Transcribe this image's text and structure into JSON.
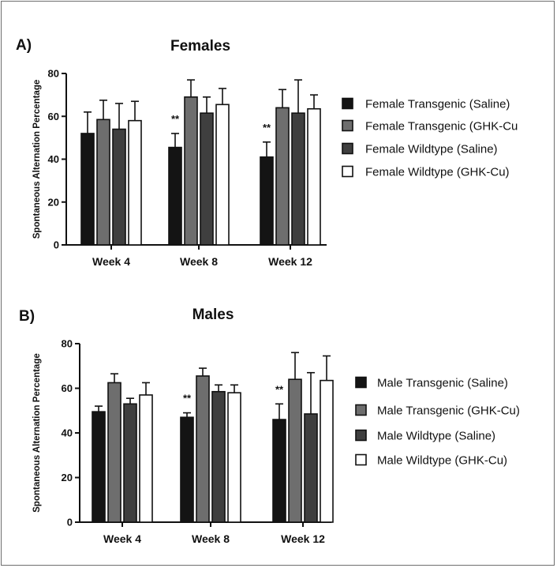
{
  "chart_data": [
    {
      "type": "bar",
      "panel_label": "A)",
      "title": "Females",
      "xlabel": "",
      "ylabel": "Spontaneous Alternation Percentage",
      "ylim": [
        0,
        80
      ],
      "yticks": [
        "0",
        "20",
        "40",
        "60",
        "80"
      ],
      "categories": [
        "Week 4",
        "Week 8",
        "Week 12"
      ],
      "legend_position": "right",
      "series": [
        {
          "name": "Female Transgenic (Saline)",
          "values": [
            52,
            45.5,
            41
          ],
          "errors": [
            10,
            6.5,
            7
          ],
          "color": "#141414"
        },
        {
          "name": "Female Transgenic (GHK-Cu",
          "values": [
            58.5,
            69,
            64
          ],
          "errors": [
            9,
            8,
            8.5
          ],
          "color": "#6e6e6e"
        },
        {
          "name": "Female Wildtype (Saline)",
          "values": [
            54,
            61.5,
            61.5
          ],
          "errors": [
            12,
            7.5,
            15.5
          ],
          "color": "#3f3f3f"
        },
        {
          "name": "Female Wildtype (GHK-Cu)",
          "values": [
            58,
            65.5,
            63.5
          ],
          "errors": [
            9,
            7.5,
            6.5
          ],
          "color": "#ffffff"
        }
      ],
      "annotations": [
        {
          "category": "Week 8",
          "text": "**"
        },
        {
          "category": "Week 12",
          "text": "**"
        }
      ]
    },
    {
      "type": "bar",
      "panel_label": "B)",
      "title": "Males",
      "xlabel": "",
      "ylabel": "Spontaneous Alternation Percentage",
      "ylim": [
        0,
        80
      ],
      "yticks": [
        "0",
        "20",
        "40",
        "60",
        "80"
      ],
      "categories": [
        "Week 4",
        "Week 8",
        "Week 12"
      ],
      "legend_position": "right",
      "series": [
        {
          "name": "Male Transgenic (Saline)",
          "values": [
            49.5,
            47,
            46
          ],
          "errors": [
            2.5,
            2,
            7
          ],
          "color": "#141414"
        },
        {
          "name": "Male Transgenic (GHK-Cu)",
          "values": [
            62.5,
            65.5,
            64
          ],
          "errors": [
            4,
            3.5,
            12
          ],
          "color": "#6e6e6e"
        },
        {
          "name": "Male Wildtype (Saline)",
          "values": [
            53,
            58.5,
            48.5
          ],
          "errors": [
            2.5,
            3,
            18.5
          ],
          "color": "#3f3f3f"
        },
        {
          "name": "Male Wildtype (GHK-Cu)",
          "values": [
            57,
            58,
            63.5
          ],
          "errors": [
            5.5,
            3.5,
            11
          ],
          "color": "#ffffff"
        }
      ],
      "annotations": [
        {
          "category": "Week 8",
          "text": "**"
        },
        {
          "category": "Week 12",
          "text": "**"
        }
      ]
    }
  ]
}
